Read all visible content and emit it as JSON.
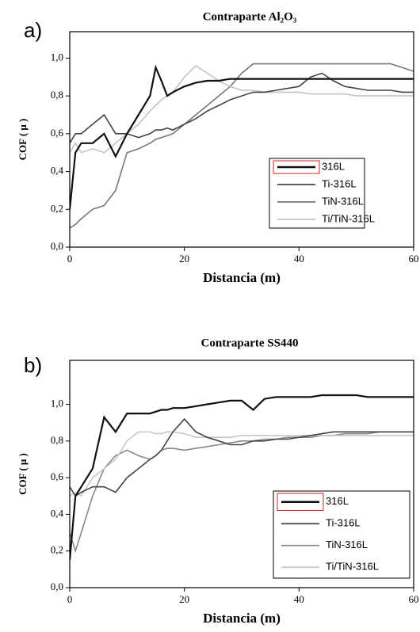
{
  "chart_data": [
    {
      "type": "line",
      "panel": "a)",
      "title": "Contraparte Al₂O₃",
      "x_label": "Distancia (m)",
      "y_label": "COF ( μ )",
      "x": [
        0,
        1,
        2,
        4,
        6,
        8,
        10,
        12,
        14,
        15,
        16,
        17,
        18,
        20,
        22,
        24,
        26,
        28,
        30,
        32,
        34,
        36,
        38,
        40,
        42,
        44,
        46,
        48,
        50,
        52,
        54,
        56,
        58,
        60
      ],
      "xlim": [
        0,
        60
      ],
      "xticks": [
        0,
        20,
        40,
        60
      ],
      "ylim": [
        0,
        1.14
      ],
      "yticks": [
        {
          "value": 0,
          "label": "0,0"
        },
        {
          "value": 0.2,
          "label": "0,2"
        },
        {
          "value": 0.4,
          "label": "0,4"
        },
        {
          "value": 0.6,
          "label": "0,6"
        },
        {
          "value": 0.8,
          "label": "0,8"
        },
        {
          "value": 1.0,
          "label": "1,0"
        }
      ],
      "series": [
        {
          "name": "316L",
          "color": "#111111",
          "values": [
            0.2,
            0.5,
            0.55,
            0.55,
            0.6,
            0.48,
            0.6,
            0.7,
            0.8,
            0.95,
            0.88,
            0.8,
            0.82,
            0.85,
            0.87,
            0.88,
            0.88,
            0.89,
            0.89,
            0.89,
            0.89,
            0.89,
            0.89,
            0.89,
            0.89,
            0.89,
            0.89,
            0.89,
            0.89,
            0.89,
            0.89,
            0.89,
            0.89,
            0.89
          ]
        },
        {
          "name": "Ti-316L",
          "color": "#444444",
          "values": [
            0.55,
            0.6,
            0.6,
            0.65,
            0.7,
            0.6,
            0.6,
            0.58,
            0.6,
            0.62,
            0.62,
            0.63,
            0.62,
            0.65,
            0.68,
            0.72,
            0.75,
            0.78,
            0.8,
            0.82,
            0.82,
            0.83,
            0.84,
            0.85,
            0.9,
            0.92,
            0.88,
            0.85,
            0.84,
            0.83,
            0.83,
            0.83,
            0.82,
            0.82
          ]
        },
        {
          "name": "TiN-316L",
          "color": "#777777",
          "values": [
            0.1,
            0.12,
            0.15,
            0.2,
            0.22,
            0.3,
            0.5,
            0.52,
            0.55,
            0.57,
            0.58,
            0.59,
            0.6,
            0.65,
            0.7,
            0.75,
            0.8,
            0.85,
            0.92,
            0.97,
            0.97,
            0.97,
            0.97,
            0.97,
            0.97,
            0.97,
            0.97,
            0.97,
            0.97,
            0.97,
            0.97,
            0.97,
            0.95,
            0.93
          ]
        },
        {
          "name": "Ti/TiN-316L",
          "color": "#c4c4c4",
          "values": [
            0.5,
            0.55,
            0.5,
            0.52,
            0.5,
            0.55,
            0.6,
            0.65,
            0.72,
            0.75,
            0.78,
            0.8,
            0.82,
            0.9,
            0.96,
            0.92,
            0.88,
            0.85,
            0.83,
            0.83,
            0.82,
            0.82,
            0.82,
            0.82,
            0.81,
            0.81,
            0.81,
            0.81,
            0.8,
            0.8,
            0.8,
            0.8,
            0.8,
            0.8
          ]
        }
      ]
    },
    {
      "type": "line",
      "panel": "b)",
      "title": "Contraparte SS440",
      "x_label": "Distancia (m)",
      "y_label": "COF ( μ )",
      "x": [
        0,
        1,
        2,
        4,
        6,
        8,
        10,
        12,
        14,
        15,
        16,
        17,
        18,
        20,
        22,
        24,
        26,
        28,
        30,
        32,
        34,
        36,
        38,
        40,
        42,
        44,
        46,
        48,
        50,
        52,
        54,
        56,
        58,
        60
      ],
      "xlim": [
        0,
        60
      ],
      "xticks": [
        0,
        20,
        40,
        60
      ],
      "ylim": [
        0,
        1.24
      ],
      "yticks": [
        {
          "value": 0,
          "label": "0,0"
        },
        {
          "value": 0.2,
          "label": "0,2"
        },
        {
          "value": 0.4,
          "label": "0,4"
        },
        {
          "value": 0.6,
          "label": "0,6"
        },
        {
          "value": 0.8,
          "label": "0,8"
        },
        {
          "value": 1.0,
          "label": "1,0"
        }
      ],
      "series": [
        {
          "name": "316L",
          "color": "#111111",
          "values": [
            0.15,
            0.5,
            0.55,
            0.65,
            0.93,
            0.85,
            0.95,
            0.95,
            0.95,
            0.96,
            0.97,
            0.97,
            0.98,
            0.98,
            0.99,
            1.0,
            1.01,
            1.02,
            1.02,
            0.97,
            1.03,
            1.04,
            1.04,
            1.04,
            1.04,
            1.05,
            1.05,
            1.05,
            1.05,
            1.04,
            1.04,
            1.04,
            1.04,
            1.04
          ]
        },
        {
          "name": "Ti-316L",
          "color": "#444444",
          "values": [
            0.55,
            0.5,
            0.52,
            0.55,
            0.55,
            0.52,
            0.6,
            0.65,
            0.7,
            0.72,
            0.75,
            0.8,
            0.85,
            0.92,
            0.85,
            0.82,
            0.8,
            0.78,
            0.78,
            0.8,
            0.8,
            0.81,
            0.81,
            0.82,
            0.83,
            0.84,
            0.85,
            0.85,
            0.85,
            0.85,
            0.85,
            0.85,
            0.85,
            0.85
          ]
        },
        {
          "name": "TiN-316L",
          "color": "#888888",
          "values": [
            0.3,
            0.2,
            0.3,
            0.5,
            0.65,
            0.72,
            0.75,
            0.72,
            0.7,
            0.72,
            0.75,
            0.76,
            0.76,
            0.75,
            0.76,
            0.77,
            0.78,
            0.79,
            0.8,
            0.8,
            0.81,
            0.81,
            0.82,
            0.82,
            0.82,
            0.83,
            0.83,
            0.84,
            0.84,
            0.84,
            0.85,
            0.85,
            0.85,
            0.85
          ]
        },
        {
          "name": "Ti/TiN-316L",
          "color": "#c8c8c8",
          "values": [
            0.5,
            0.52,
            0.5,
            0.6,
            0.65,
            0.7,
            0.8,
            0.85,
            0.85,
            0.84,
            0.84,
            0.85,
            0.85,
            0.84,
            0.82,
            0.82,
            0.82,
            0.82,
            0.83,
            0.83,
            0.83,
            0.83,
            0.83,
            0.83,
            0.83,
            0.83,
            0.83,
            0.83,
            0.83,
            0.83,
            0.83,
            0.83,
            0.83,
            0.83
          ]
        }
      ]
    }
  ]
}
